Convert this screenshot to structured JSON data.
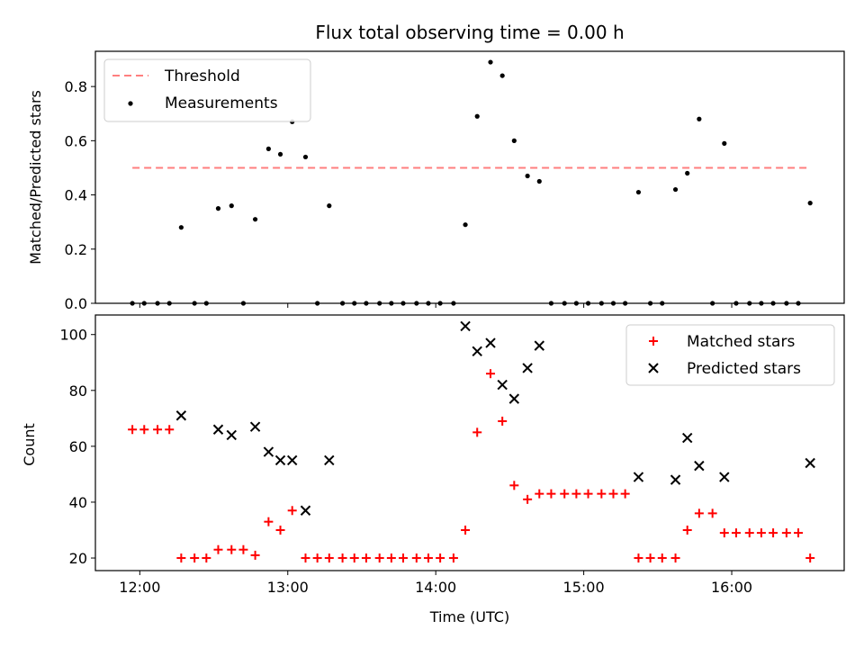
{
  "chart_data": [
    {
      "type": "scatter",
      "title": "Flux total observing time = 0.00 h",
      "xlabel": "",
      "ylabel": "Matched/Predicted stars",
      "ylim": [
        0,
        0.93
      ],
      "yticks": [
        0.0,
        0.2,
        0.4,
        0.6,
        0.8
      ],
      "ytick_labels": [
        "0.0",
        "0.2",
        "0.4",
        "0.6",
        "0.8"
      ],
      "xlim": [
        11.7,
        16.76
      ],
      "xticks": [
        12,
        13,
        14,
        15,
        16
      ],
      "legend": {
        "position": "top-left",
        "entries": [
          "Threshold",
          "Measurements"
        ]
      },
      "threshold": {
        "name": "Threshold",
        "value": 0.5,
        "x_range": [
          11.95,
          16.53
        ],
        "color": "#ff7f7f"
      },
      "series": [
        {
          "name": "Measurements",
          "color": "#000000",
          "x": [
            11.95,
            12.03,
            12.12,
            12.2,
            12.28,
            12.37,
            12.45,
            12.53,
            12.62,
            12.7,
            12.78,
            12.87,
            12.95,
            13.03,
            13.12,
            13.2,
            13.28,
            13.37,
            13.45,
            13.53,
            13.62,
            13.7,
            13.78,
            13.87,
            13.95,
            14.03,
            14.12,
            14.2,
            14.28,
            14.37,
            14.45,
            14.53,
            14.62,
            14.7,
            14.78,
            14.87,
            14.95,
            15.03,
            15.12,
            15.2,
            15.28,
            15.37,
            15.45,
            15.53,
            15.62,
            15.7,
            15.78,
            15.87,
            15.95,
            16.03,
            16.12,
            16.2,
            16.28,
            16.37,
            16.45,
            16.53
          ],
          "y": [
            0,
            0,
            0,
            0,
            0.28,
            0,
            0,
            0.35,
            0.36,
            0,
            0.31,
            0.57,
            0.55,
            0.67,
            0.54,
            0,
            0.36,
            0,
            0,
            0,
            0,
            0,
            0,
            0,
            0,
            0,
            0,
            0.29,
            0.69,
            0.89,
            0.84,
            0.6,
            0.47,
            0.45,
            0,
            0,
            0,
            0,
            0,
            0,
            0,
            0.41,
            0,
            0,
            0.42,
            0.48,
            0.68,
            0,
            0.59,
            0,
            0,
            0,
            0,
            0,
            0,
            0.37
          ]
        }
      ]
    },
    {
      "type": "scatter",
      "title": "",
      "xlabel": "Time (UTC)",
      "ylabel": "Count",
      "ylim": [
        15.5,
        107
      ],
      "yticks": [
        20,
        40,
        60,
        80,
        100
      ],
      "ytick_labels": [
        "20",
        "40",
        "60",
        "80",
        "100"
      ],
      "xlim": [
        11.7,
        16.76
      ],
      "xticks": [
        12,
        13,
        14,
        15,
        16
      ],
      "xtick_labels": [
        "12:00",
        "13:00",
        "14:00",
        "15:00",
        "16:00"
      ],
      "legend": {
        "position": "top-right",
        "entries": [
          "Matched stars",
          "Predicted stars"
        ]
      },
      "series": [
        {
          "name": "Matched stars",
          "marker": "plus",
          "color": "#ff0000",
          "x": [
            11.95,
            12.03,
            12.12,
            12.2,
            12.28,
            12.37,
            12.45,
            12.53,
            12.62,
            12.7,
            12.78,
            12.87,
            12.95,
            13.03,
            13.12,
            13.2,
            13.28,
            13.37,
            13.45,
            13.53,
            13.62,
            13.7,
            13.78,
            13.87,
            13.95,
            14.03,
            14.12,
            14.2,
            14.28,
            14.37,
            14.45,
            14.53,
            14.62,
            14.7,
            14.78,
            14.87,
            14.95,
            15.03,
            15.12,
            15.2,
            15.28,
            15.37,
            15.45,
            15.53,
            15.62,
            15.7,
            15.78,
            15.87,
            15.95,
            16.03,
            16.12,
            16.2,
            16.28,
            16.37,
            16.45,
            16.53
          ],
          "y": [
            66,
            66,
            66,
            66,
            20,
            20,
            20,
            23,
            23,
            23,
            21,
            33,
            30,
            37,
            20,
            20,
            20,
            20,
            20,
            20,
            20,
            20,
            20,
            20,
            20,
            20,
            20,
            30,
            65,
            86,
            69,
            46,
            41,
            43,
            43,
            43,
            43,
            43,
            43,
            43,
            43,
            20,
            20,
            20,
            20,
            30,
            36,
            36,
            29,
            29,
            29,
            29,
            29,
            29,
            29,
            20
          ]
        },
        {
          "name": "Predicted stars",
          "marker": "x",
          "color": "#000000",
          "x": [
            12.28,
            12.53,
            12.62,
            12.78,
            12.87,
            12.95,
            13.03,
            13.12,
            13.28,
            14.2,
            14.28,
            14.37,
            14.45,
            14.53,
            14.62,
            14.7,
            15.37,
            15.62,
            15.7,
            15.78,
            15.95,
            16.53
          ],
          "y": [
            71,
            66,
            64,
            67,
            58,
            55,
            55,
            37,
            55,
            103,
            94,
            97,
            82,
            77,
            88,
            96,
            49,
            48,
            63,
            53,
            49,
            54
          ]
        }
      ]
    }
  ]
}
